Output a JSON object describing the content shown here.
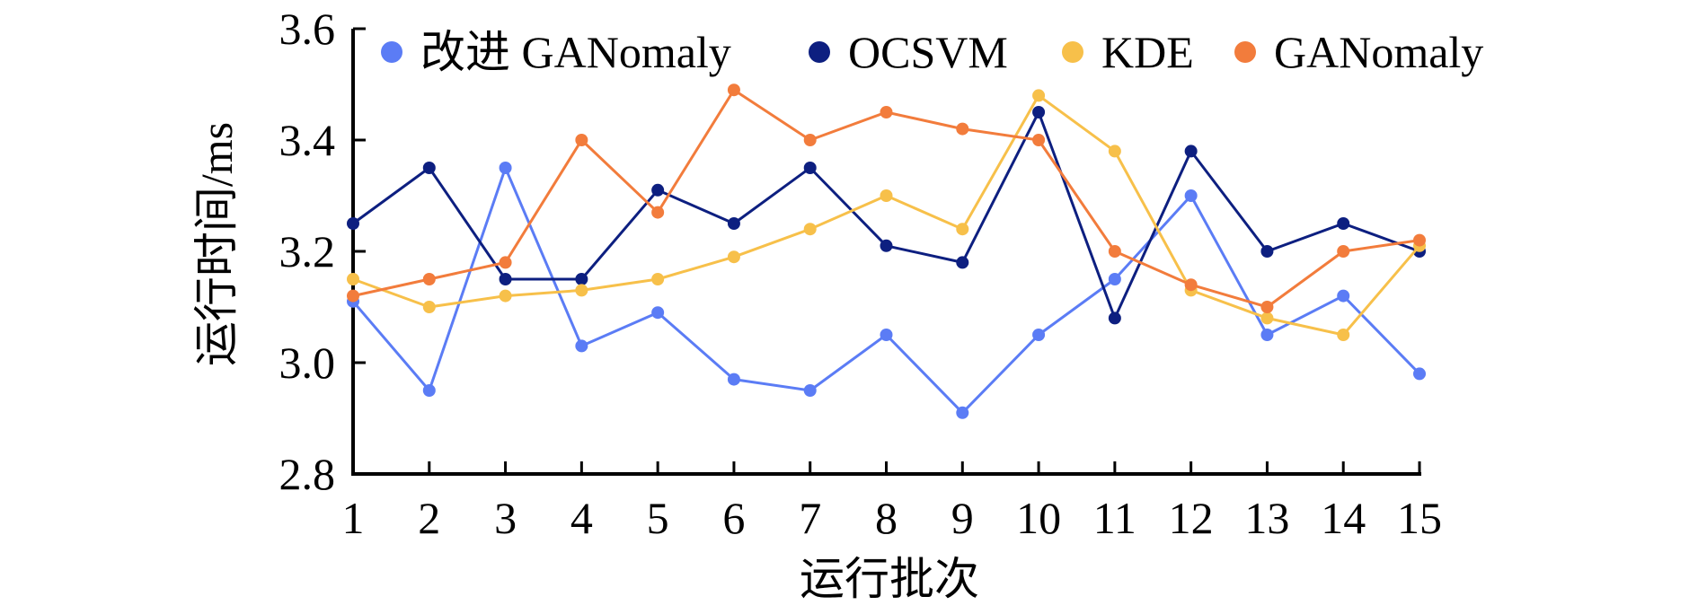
{
  "chart_data": {
    "type": "line",
    "xlabel": "运行批次",
    "ylabel": "运行时间/ms",
    "x": [
      1,
      2,
      3,
      4,
      5,
      6,
      7,
      8,
      9,
      10,
      11,
      12,
      13,
      14,
      15
    ],
    "ylim": [
      2.8,
      3.6
    ],
    "yticks": [
      "2.8",
      "3.0",
      "3.2",
      "3.4",
      "3.6"
    ],
    "grid": false,
    "legend_position": "top",
    "series": [
      {
        "name": "改进 GANomaly",
        "color": "#5b7cf5",
        "values": [
          3.11,
          2.95,
          3.35,
          3.03,
          3.09,
          2.97,
          2.95,
          3.05,
          2.91,
          3.05,
          3.15,
          3.3,
          3.05,
          3.12,
          2.98
        ]
      },
      {
        "name": "OCSVM",
        "color": "#0d1f80",
        "values": [
          3.25,
          3.35,
          3.15,
          3.15,
          3.31,
          3.25,
          3.35,
          3.21,
          3.18,
          3.45,
          3.08,
          3.38,
          3.2,
          3.25,
          3.2
        ]
      },
      {
        "name": "KDE",
        "color": "#f7c04a",
        "values": [
          3.15,
          3.1,
          3.12,
          3.13,
          3.15,
          3.19,
          3.24,
          3.3,
          3.24,
          3.48,
          3.38,
          3.13,
          3.08,
          3.05,
          3.21
        ]
      },
      {
        "name": "GANomaly",
        "color": "#f27c3c",
        "values": [
          3.12,
          3.15,
          3.18,
          3.4,
          3.27,
          3.49,
          3.4,
          3.45,
          3.42,
          3.4,
          3.2,
          3.14,
          3.1,
          3.2,
          3.22
        ]
      }
    ]
  }
}
